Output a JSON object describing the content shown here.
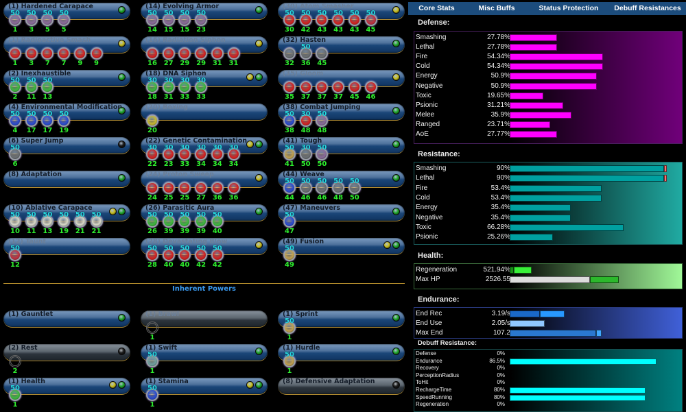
{
  "colors": {
    "green": "#1fa82a",
    "yellow": "#c8c020",
    "black": "#1a1a1a",
    "purple": "#8a6a9a",
    "red": "#d42020",
    "grn": "#3cb83c",
    "blue": "#2a4ad0",
    "gray": "#6a6e72",
    "white": "#d8d8c8",
    "yellow_e": "#c8b830",
    "pink": "#c03040",
    "tan": "#c0a050",
    "teal": "#70a0a0"
  },
  "powers": [
    {
      "name": "(1) Hardened Carapace",
      "dim": false,
      "lights": [
        "green"
      ],
      "slots": [
        {
          "l": "50",
          "lv": "1",
          "c": "purple"
        },
        {
          "l": "50",
          "lv": "3",
          "c": "purple"
        },
        {
          "l": "50",
          "lv": "5",
          "c": "purple"
        },
        {
          "l": "50",
          "lv": "5",
          "c": "purple"
        }
      ]
    },
    {
      "name": "(1) Radioactive Smash",
      "dim": true,
      "lights": [
        "yellow"
      ],
      "slots": [
        {
          "l": "",
          "lv": "1",
          "c": "red"
        },
        {
          "l": "",
          "lv": "3",
          "c": "red"
        },
        {
          "l": "",
          "lv": "7",
          "c": "red"
        },
        {
          "l": "",
          "lv": "7",
          "c": "red"
        },
        {
          "l": "",
          "lv": "9",
          "c": "red"
        },
        {
          "l": "",
          "lv": "9",
          "c": "red"
        }
      ]
    },
    {
      "name": "(2) Inexhaustible",
      "dim": false,
      "lights": [
        "green"
      ],
      "slots": [
        {
          "l": "50",
          "lv": "2",
          "c": "grn"
        },
        {
          "l": "50",
          "lv": "11",
          "c": "grn"
        },
        {
          "l": "50",
          "lv": "13",
          "c": "grn"
        }
      ]
    },
    {
      "name": "(4) Environmental Modification",
      "dim": false,
      "lights": [
        "green"
      ],
      "slots": [
        {
          "l": "50",
          "lv": "4",
          "c": "blue"
        },
        {
          "l": "50",
          "lv": "17",
          "c": "blue"
        },
        {
          "l": "50",
          "lv": "17",
          "c": "blue"
        },
        {
          "l": "50",
          "lv": "19",
          "c": "blue"
        }
      ]
    },
    {
      "name": "(6) Super Jump",
      "dim": false,
      "lights": [
        "black"
      ],
      "slots": [
        {
          "l": "50",
          "lv": "6",
          "c": "gray"
        }
      ]
    },
    {
      "name": "(8) Adaptation",
      "dim": false,
      "lights": [
        "green"
      ],
      "slots": []
    },
    {
      "name": "(10) Ablative Carapace",
      "dim": false,
      "lights": [
        "yellow",
        "green"
      ],
      "slots": [
        {
          "l": "50",
          "lv": "10",
          "c": "white"
        },
        {
          "l": "50",
          "lv": "11",
          "c": "white"
        },
        {
          "l": "50",
          "lv": "13",
          "c": "white"
        },
        {
          "l": "50",
          "lv": "19",
          "c": "white"
        },
        {
          "l": "50",
          "lv": "21",
          "c": "white"
        },
        {
          "l": "50",
          "lv": "21",
          "c": "white"
        }
      ]
    },
    {
      "name": "(12) Taunt",
      "dim": true,
      "lights": [],
      "slots": [
        {
          "l": "50",
          "lv": "12",
          "c": "pink"
        }
      ]
    },
    {
      "name": "(14) Evolving Armor",
      "dim": false,
      "lights": [
        "green"
      ],
      "slots": [
        {
          "l": "50",
          "lv": "14",
          "c": "purple"
        },
        {
          "l": "50",
          "lv": "15",
          "c": "purple"
        },
        {
          "l": "50",
          "lv": "15",
          "c": "purple"
        },
        {
          "l": "50",
          "lv": "23",
          "c": "purple"
        }
      ]
    },
    {
      "name": "(16) Radiation Siphon",
      "dim": true,
      "lights": [
        "yellow"
      ],
      "slots": [
        {
          "l": "",
          "lv": "16",
          "c": "red"
        },
        {
          "l": "",
          "lv": "27",
          "c": "red"
        },
        {
          "l": "",
          "lv": "29",
          "c": "red"
        },
        {
          "l": "",
          "lv": "29",
          "c": "red"
        },
        {
          "l": "",
          "lv": "31",
          "c": "red"
        },
        {
          "l": "",
          "lv": "31",
          "c": "red"
        }
      ]
    },
    {
      "name": "(18) DNA Siphon",
      "dim": false,
      "lights": [
        "yellow",
        "green"
      ],
      "slots": [
        {
          "l": "30",
          "lv": "18",
          "c": "grn"
        },
        {
          "l": "30",
          "lv": "31",
          "c": "grn"
        },
        {
          "l": "30",
          "lv": "33",
          "c": "grn"
        },
        {
          "l": "30",
          "lv": "33",
          "c": "grn"
        }
      ]
    },
    {
      "name": "(20) Boxing",
      "dim": true,
      "lights": [],
      "slots": [
        {
          "l": "",
          "lv": "20",
          "c": "yellow_e"
        }
      ]
    },
    {
      "name": "(22) Genetic Contamination",
      "dim": false,
      "lights": [
        "yellow",
        "green"
      ],
      "slots": [
        {
          "l": "30",
          "lv": "22",
          "c": "red"
        },
        {
          "l": "30",
          "lv": "23",
          "c": "red"
        },
        {
          "l": "30",
          "lv": "33",
          "c": "red"
        },
        {
          "l": "30",
          "lv": "34",
          "c": "red"
        },
        {
          "l": "30",
          "lv": "34",
          "c": "red"
        },
        {
          "l": "30",
          "lv": "34",
          "c": "red"
        }
      ]
    },
    {
      "name": "(24) Proton Sweep",
      "dim": true,
      "lights": [
        "yellow"
      ],
      "slots": [
        {
          "l": "",
          "lv": "24",
          "c": "red"
        },
        {
          "l": "",
          "lv": "25",
          "c": "red"
        },
        {
          "l": "",
          "lv": "25",
          "c": "red"
        },
        {
          "l": "",
          "lv": "27",
          "c": "red"
        },
        {
          "l": "",
          "lv": "36",
          "c": "red"
        },
        {
          "l": "",
          "lv": "36",
          "c": "red"
        }
      ]
    },
    {
      "name": "(26) Parasitic Aura",
      "dim": false,
      "lights": [
        "green"
      ],
      "slots": [
        {
          "l": "50",
          "lv": "26",
          "c": "grn"
        },
        {
          "l": "50",
          "lv": "39",
          "c": "grn"
        },
        {
          "l": "50",
          "lv": "39",
          "c": "grn"
        },
        {
          "l": "50",
          "lv": "39",
          "c": "grn"
        },
        {
          "l": "50",
          "lv": "40",
          "c": "grn"
        }
      ]
    },
    {
      "name": "(28) Devastating Blow",
      "dim": true,
      "lights": [
        "yellow"
      ],
      "slots": [
        {
          "l": "50",
          "lv": "28",
          "c": "red"
        },
        {
          "l": "50",
          "lv": "40",
          "c": "red"
        },
        {
          "l": "50",
          "lv": "40",
          "c": "red"
        },
        {
          "l": "50",
          "lv": "42",
          "c": "red"
        },
        {
          "l": "50",
          "lv": "42",
          "c": "red"
        }
      ]
    },
    {
      "name": "(30) Atom Smasher",
      "dim": true,
      "lights": [
        "yellow"
      ],
      "slots": [
        {
          "l": "50",
          "lv": "30",
          "c": "red"
        },
        {
          "l": "50",
          "lv": "42",
          "c": "red"
        },
        {
          "l": "50",
          "lv": "43",
          "c": "red"
        },
        {
          "l": "50",
          "lv": "43",
          "c": "red"
        },
        {
          "l": "50",
          "lv": "43",
          "c": "red"
        },
        {
          "l": "50",
          "lv": "45",
          "c": "pink"
        }
      ]
    },
    {
      "name": "(32) Hasten",
      "dim": false,
      "lights": [
        "green"
      ],
      "slots": [
        {
          "l": "",
          "lv": "32",
          "c": "gray"
        },
        {
          "l": "50",
          "lv": "36",
          "c": "gray"
        },
        {
          "l": "",
          "lv": "45",
          "c": "gray"
        }
      ]
    },
    {
      "name": "(35) Gloom",
      "dim": true,
      "lights": [
        "yellow"
      ],
      "slots": [
        {
          "l": "",
          "lv": "35",
          "c": "red"
        },
        {
          "l": "",
          "lv": "37",
          "c": "red"
        },
        {
          "l": "",
          "lv": "37",
          "c": "red"
        },
        {
          "l": "",
          "lv": "37",
          "c": "red"
        },
        {
          "l": "",
          "lv": "45",
          "c": "red"
        },
        {
          "l": "",
          "lv": "46",
          "c": "red"
        }
      ]
    },
    {
      "name": "(38) Combat Jumping",
      "dim": false,
      "lights": [
        "green"
      ],
      "slots": [
        {
          "l": "50",
          "lv": "38",
          "c": "blue"
        },
        {
          "l": "30",
          "lv": "48",
          "c": "red"
        },
        {
          "l": "50",
          "lv": "48",
          "c": "purple"
        }
      ]
    },
    {
      "name": "(41) Tough",
      "dim": false,
      "lights": [
        "green"
      ],
      "slots": [
        {
          "l": "50",
          "lv": "41",
          "c": "tan"
        },
        {
          "l": "30",
          "lv": "50",
          "c": "gray"
        },
        {
          "l": "50",
          "lv": "50",
          "c": "purple"
        }
      ]
    },
    {
      "name": "(44) Weave",
      "dim": false,
      "lights": [
        "green"
      ],
      "slots": [
        {
          "l": "50",
          "lv": "44",
          "c": "blue"
        },
        {
          "l": "50",
          "lv": "46",
          "c": "gray"
        },
        {
          "l": "50",
          "lv": "46",
          "c": "gray"
        },
        {
          "l": "50",
          "lv": "48",
          "c": "gray"
        },
        {
          "l": "50",
          "lv": "50",
          "c": "gray"
        }
      ]
    },
    {
      "name": "(47) Maneuvers",
      "dim": false,
      "lights": [
        "green"
      ],
      "slots": [
        {
          "l": "50",
          "lv": "47",
          "c": "blue"
        }
      ]
    },
    {
      "name": "(49) Fusion",
      "dim": false,
      "lights": [
        "yellow",
        "green"
      ],
      "slots": [
        {
          "l": "50",
          "lv": "49",
          "c": "tan"
        }
      ]
    }
  ],
  "inherent_title": "Inherent Powers",
  "inherent": [
    {
      "name": "(1) Gauntlet",
      "dim": false,
      "gray": false,
      "lights": [
        "green"
      ],
      "slots": []
    },
    {
      "name": "(1) Brawl",
      "dim": true,
      "gray": true,
      "lights": [],
      "slots": [
        {
          "l": "",
          "lv": "1",
          "c": "empty"
        }
      ]
    },
    {
      "name": "(1) Sprint",
      "dim": false,
      "gray": false,
      "lights": [
        "green"
      ],
      "slots": [
        {
          "l": "50",
          "lv": "1",
          "c": "tan"
        }
      ]
    },
    {
      "name": "(2) Rest",
      "dim": false,
      "gray": true,
      "lights": [
        "black"
      ],
      "slots": [
        {
          "l": "",
          "lv": "2",
          "c": "empty"
        }
      ]
    },
    {
      "name": "(1) Swift",
      "dim": false,
      "gray": false,
      "lights": [
        "green"
      ],
      "slots": [
        {
          "l": "50",
          "lv": "1",
          "c": "teal"
        }
      ]
    },
    {
      "name": "(1) Hurdle",
      "dim": false,
      "gray": false,
      "lights": [
        "green"
      ],
      "slots": [
        {
          "l": "50",
          "lv": "1",
          "c": "tan"
        }
      ]
    },
    {
      "name": "(1) Health",
      "dim": false,
      "gray": false,
      "lights": [
        "yellow",
        "green"
      ],
      "slots": [
        {
          "l": "50",
          "lv": "1",
          "c": "grn"
        }
      ]
    },
    {
      "name": "(1) Stamina",
      "dim": false,
      "gray": false,
      "lights": [
        "yellow",
        "green"
      ],
      "slots": [
        {
          "l": "50",
          "lv": "1",
          "c": "blue"
        }
      ]
    },
    {
      "name": "(8) Defensive Adaptation",
      "dim": false,
      "gray": true,
      "lights": [
        "black"
      ],
      "slots": []
    }
  ],
  "tabs": [
    {
      "label": "Core Stats",
      "active": true
    },
    {
      "label": "Misc Buffs",
      "active": false
    },
    {
      "label": "Status Protection",
      "active": false
    },
    {
      "label": "Debuff Resistances",
      "active": false
    }
  ],
  "defense": {
    "title": "Defense:",
    "bar_color": "#ff00ff",
    "rows": [
      {
        "name": "Smashing",
        "value": "27.78%",
        "pct": 27.78
      },
      {
        "name": "Lethal",
        "value": "27.78%",
        "pct": 27.78
      },
      {
        "name": "Fire",
        "value": "54.34%",
        "pct": 54.34
      },
      {
        "name": "Cold",
        "value": "54.34%",
        "pct": 54.34
      },
      {
        "name": "Energy",
        "value": "50.9%",
        "pct": 50.9
      },
      {
        "name": "Negative",
        "value": "50.9%",
        "pct": 50.9
      },
      {
        "name": "Toxic",
        "value": "19.65%",
        "pct": 19.65
      },
      {
        "name": "Psionic",
        "value": "31.21%",
        "pct": 31.21
      },
      {
        "name": "Melee",
        "value": "35.9%",
        "pct": 35.9
      },
      {
        "name": "Ranged",
        "value": "23.71%",
        "pct": 23.71
      },
      {
        "name": "AoE",
        "value": "27.77%",
        "pct": 27.77
      }
    ]
  },
  "resistance": {
    "title": "Resistance:",
    "bar_color": "#00a0a0",
    "cap_color": "#ff7070",
    "rows": [
      {
        "name": "Smashing",
        "value": "90%",
        "pct": 90,
        "capped": true
      },
      {
        "name": "Lethal",
        "value": "90%",
        "pct": 90,
        "capped": true
      },
      {
        "name": "Fire",
        "value": "53.4%",
        "pct": 53.4
      },
      {
        "name": "Cold",
        "value": "53.4%",
        "pct": 53.4
      },
      {
        "name": "Energy",
        "value": "35.4%",
        "pct": 35.4
      },
      {
        "name": "Negative",
        "value": "35.4%",
        "pct": 35.4
      },
      {
        "name": "Toxic",
        "value": "66.28%",
        "pct": 66.28
      },
      {
        "name": "Psionic",
        "value": "25.26%",
        "pct": 25.26
      }
    ]
  },
  "health": {
    "title": "Health:",
    "rows": [
      {
        "name": "Regeneration",
        "value": "521.94%",
        "segs": [
          {
            "f": 0.024,
            "c": "#169016"
          },
          {
            "f": 0.104,
            "c": "#38f038"
          }
        ]
      },
      {
        "name": "Max HP",
        "value": "2526.55",
        "segs": [
          {
            "f": 0.468,
            "c": "#dcdcdc"
          },
          {
            "f": 0.168,
            "c": "#2cb82c"
          }
        ]
      }
    ]
  },
  "endurance": {
    "title": "Endurance:",
    "rows": [
      {
        "name": "End Rec",
        "value": "3.19/s",
        "segs": [
          {
            "f": 0.176,
            "c": "#1a68c8"
          },
          {
            "f": 0.144,
            "c": "#2898ff"
          }
        ]
      },
      {
        "name": "End Use",
        "value": "2.05/s",
        "segs": [
          {
            "f": 0.204,
            "c": "#90c8ff"
          }
        ]
      },
      {
        "name": "Max End",
        "value": "107.2",
        "segs": [
          {
            "f": 0.504,
            "c": "#2a78d0"
          },
          {
            "f": 0.032,
            "c": "#40a8ff"
          }
        ]
      }
    ]
  },
  "debuff": {
    "title": "Debuff Resistance:",
    "bar_color": "#00ffff",
    "rows": [
      {
        "name": "Defense",
        "value": "0%",
        "pct": 0
      },
      {
        "name": "Endurance",
        "value": "86.5%",
        "pct": 86.5
      },
      {
        "name": "Recovery",
        "value": "0%",
        "pct": 0
      },
      {
        "name": "PerceptionRadius",
        "value": "0%",
        "pct": 0
      },
      {
        "name": "ToHit",
        "value": "0%",
        "pct": 0
      },
      {
        "name": "RechargeTime",
        "value": "80%",
        "pct": 80
      },
      {
        "name": "SpeedRunning",
        "value": "80%",
        "pct": 80
      },
      {
        "name": "Regeneration",
        "value": "0%",
        "pct": 0
      }
    ]
  }
}
